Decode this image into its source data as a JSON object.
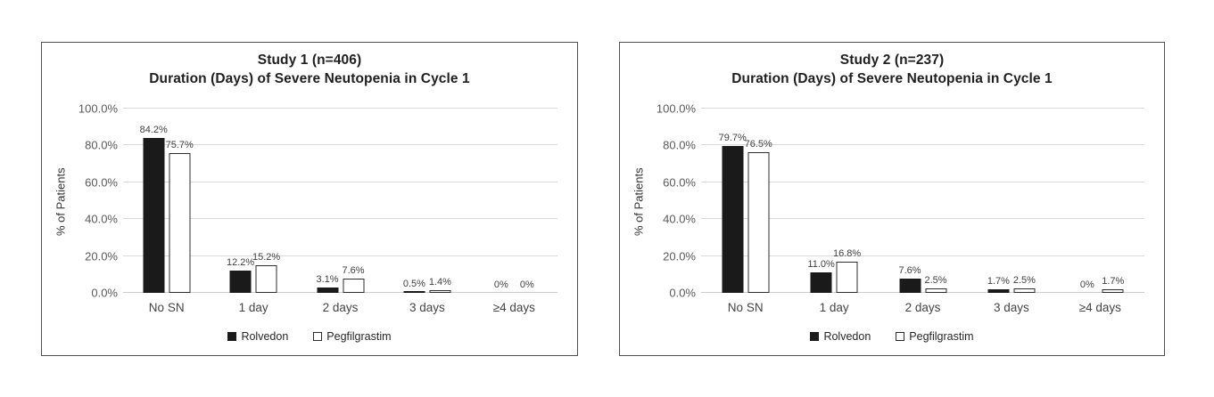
{
  "page": {
    "background": "#ffffff"
  },
  "colors": {
    "bar_black": "#1a1a1a",
    "bar_white": "#ffffff",
    "bar_border": "#2b2b2b",
    "gridline": "#d9d9d9",
    "axis_baseline": "#cccccc",
    "tick_text": "#595959",
    "data_label_text": "#404040",
    "category_text": "#444444",
    "title_text": "#1f1f1f",
    "legend_text": "#262626",
    "panel_border": "#4f4f4f",
    "background": "#ffffff"
  },
  "chart_data": [
    {
      "type": "bar",
      "title": "Study 1 (n=406)",
      "subtitle": "Duration (Days) of Severe Neutopenia in Cycle 1",
      "ylabel": "% of Patients",
      "xlabel": "",
      "categories": [
        "No SN",
        "1 day",
        "2 days",
        "3 days",
        "≥4 days"
      ],
      "series": [
        {
          "name": "Rolvedon",
          "fill": "#1a1a1a",
          "border": "#1a1a1a",
          "values": [
            84.2,
            12.2,
            3.1,
            0.5,
            0
          ],
          "labels": [
            "84.2%",
            "12.2%",
            "3.1%",
            "0.5%",
            "0%"
          ]
        },
        {
          "name": "Pegfilgrastim",
          "fill": "#ffffff",
          "border": "#2b2b2b",
          "values": [
            75.7,
            15.2,
            7.6,
            1.4,
            0
          ],
          "labels": [
            "75.7%",
            "15.2%",
            "7.6%",
            "1.4%",
            "0%"
          ]
        }
      ],
      "ylim": [
        0,
        100
      ],
      "ytick_values": [
        0,
        20,
        40,
        60,
        80,
        100
      ],
      "ytick_labels": [
        "0.0%",
        "20.0%",
        "40.0%",
        "60.0%",
        "80.0%",
        "100.0%"
      ],
      "grid": true,
      "legend_position": "bottom"
    },
    {
      "type": "bar",
      "title": "Study 2 (n=237)",
      "subtitle": "Duration (Days) of Severe Neutopenia in Cycle 1",
      "ylabel": "% of Patients",
      "xlabel": "",
      "categories": [
        "No SN",
        "1 day",
        "2 days",
        "3 days",
        "≥4 days"
      ],
      "series": [
        {
          "name": "Rolvedon",
          "fill": "#1a1a1a",
          "border": "#1a1a1a",
          "values": [
            79.7,
            11.0,
            7.6,
            1.7,
            0
          ],
          "labels": [
            "79.7%",
            "11.0%",
            "7.6%",
            "1.7%",
            "0%"
          ]
        },
        {
          "name": "Pegfilgrastim",
          "fill": "#ffffff",
          "border": "#2b2b2b",
          "values": [
            76.5,
            16.8,
            2.5,
            2.5,
            1.7
          ],
          "labels": [
            "76.5%",
            "16.8%",
            "2.5%",
            "2.5%",
            "1.7%"
          ]
        }
      ],
      "ylim": [
        0,
        100
      ],
      "ytick_values": [
        0,
        20,
        40,
        60,
        80,
        100
      ],
      "ytick_labels": [
        "0.0%",
        "20.0%",
        "40.0%",
        "60.0%",
        "80.0%",
        "100.0%"
      ],
      "grid": true,
      "legend_position": "bottom"
    }
  ]
}
